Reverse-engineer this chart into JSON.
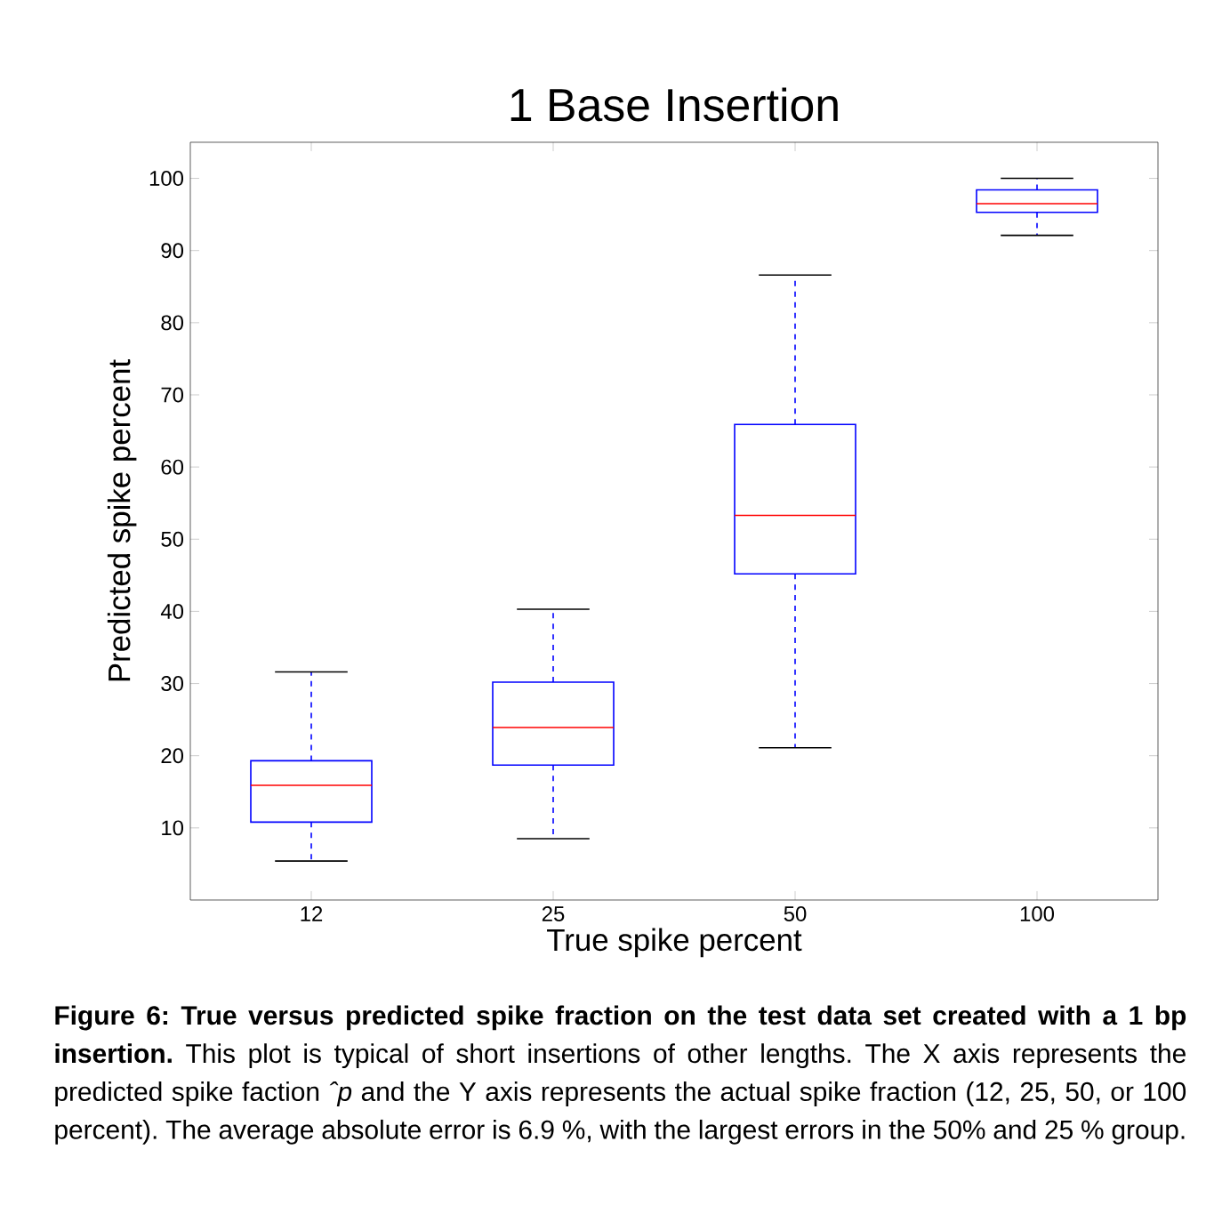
{
  "chart_data": {
    "type": "box",
    "title": "1 Base Insertion",
    "xlabel": "True spike percent",
    "ylabel": "Predicted spike percent",
    "categories": [
      "12",
      "25",
      "50",
      "100"
    ],
    "color": "#0000ff",
    "boxes": [
      {
        "low": 5.4,
        "q1": 10.8,
        "median": 15.9,
        "q3": 19.3,
        "high": 31.6
      },
      {
        "low": 8.5,
        "q1": 18.7,
        "median": 23.9,
        "q3": 30.2,
        "high": 40.3
      },
      {
        "low": 21.1,
        "q1": 45.2,
        "median": 53.3,
        "q3": 65.9,
        "high": 86.6
      },
      {
        "low": 92.1,
        "q1": 95.3,
        "median": 96.5,
        "q3": 98.4,
        "high": 100
      }
    ],
    "ylim": [
      0,
      105
    ],
    "yticks": [
      10,
      20,
      30,
      40,
      50,
      60,
      70,
      80,
      90,
      100
    ],
    "annotations": [
      "**Figure 6: True versus predicted spike fraction on the test data set created with a 1 bp insertion.** This plot is typical of short insertions of other lengths. The X axis represents the predicted spike faction *ˆp* and the Y axis represents the actual spike fraction (12, 25, 50, or 100 percent). The average absolute error is 6.9 %, with the largest errors in the 50% and 25 % group."
    ]
  }
}
